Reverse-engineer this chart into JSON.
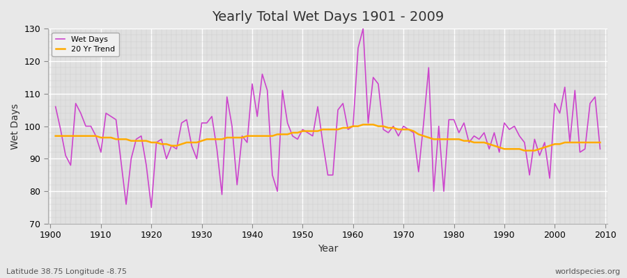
{
  "title": "Yearly Total Wet Days 1901 - 2009",
  "xlabel": "Year",
  "ylabel": "Wet Days",
  "lat_lon_label": "Latitude 38.75 Longitude -8.75",
  "watermark": "worldspecies.org",
  "ylim": [
    70,
    130
  ],
  "yticks": [
    70,
    80,
    90,
    100,
    110,
    120,
    130
  ],
  "xlim_start": 1901,
  "xlim_end": 2009,
  "years": [
    1901,
    1902,
    1903,
    1904,
    1905,
    1906,
    1907,
    1908,
    1909,
    1910,
    1911,
    1912,
    1913,
    1914,
    1915,
    1916,
    1917,
    1918,
    1919,
    1920,
    1921,
    1922,
    1923,
    1924,
    1925,
    1926,
    1927,
    1928,
    1929,
    1930,
    1931,
    1932,
    1933,
    1934,
    1935,
    1936,
    1937,
    1938,
    1939,
    1940,
    1941,
    1942,
    1943,
    1944,
    1945,
    1946,
    1947,
    1948,
    1949,
    1950,
    1951,
    1952,
    1953,
    1954,
    1955,
    1956,
    1957,
    1958,
    1959,
    1960,
    1961,
    1962,
    1963,
    1964,
    1965,
    1966,
    1967,
    1968,
    1969,
    1970,
    1971,
    1972,
    1973,
    1974,
    1975,
    1976,
    1977,
    1978,
    1979,
    1980,
    1981,
    1982,
    1983,
    1984,
    1985,
    1986,
    1987,
    1988,
    1989,
    1990,
    1991,
    1992,
    1993,
    1994,
    1995,
    1996,
    1997,
    1998,
    1999,
    2000,
    2001,
    2002,
    2003,
    2004,
    2005,
    2006,
    2007,
    2008,
    2009
  ],
  "wet_days": [
    106,
    99,
    91,
    88,
    107,
    104,
    100,
    100,
    97,
    92,
    104,
    103,
    102,
    89,
    76,
    90,
    96,
    97,
    88,
    75,
    95,
    96,
    90,
    94,
    93,
    101,
    102,
    94,
    90,
    101,
    101,
    103,
    93,
    79,
    109,
    100,
    82,
    97,
    95,
    113,
    103,
    116,
    111,
    85,
    80,
    111,
    101,
    97,
    96,
    99,
    98,
    97,
    106,
    95,
    85,
    85,
    105,
    107,
    99,
    100,
    124,
    130,
    101,
    115,
    113,
    99,
    98,
    100,
    97,
    100,
    99,
    98,
    86,
    101,
    118,
    80,
    100,
    80,
    102,
    102,
    98,
    101,
    95,
    97,
    96,
    98,
    93,
    98,
    92,
    101,
    99,
    100,
    97,
    95,
    85,
    96,
    91,
    95,
    84,
    107,
    104,
    112,
    95,
    111,
    92,
    93,
    107,
    109,
    93
  ],
  "trend_20yr": [
    97.0,
    97.0,
    97.0,
    97.0,
    97.0,
    97.0,
    97.0,
    97.0,
    97.0,
    96.5,
    96.5,
    96.5,
    96.0,
    96.0,
    96.0,
    95.5,
    95.5,
    95.5,
    95.5,
    95.0,
    95.0,
    94.5,
    94.5,
    94.0,
    94.0,
    94.5,
    95.0,
    95.0,
    95.0,
    95.5,
    96.0,
    96.0,
    96.0,
    96.0,
    96.5,
    96.5,
    96.5,
    96.5,
    97.0,
    97.0,
    97.0,
    97.0,
    97.0,
    97.0,
    97.5,
    97.5,
    97.5,
    98.0,
    98.0,
    98.5,
    98.5,
    98.5,
    98.5,
    99.0,
    99.0,
    99.0,
    99.0,
    99.5,
    99.5,
    100.0,
    100.0,
    100.5,
    100.5,
    100.5,
    100.0,
    100.0,
    99.5,
    99.5,
    99.0,
    99.0,
    99.0,
    98.5,
    97.5,
    97.0,
    96.5,
    96.0,
    96.0,
    96.0,
    96.0,
    96.0,
    96.0,
    95.5,
    95.5,
    95.0,
    95.0,
    95.0,
    94.5,
    94.0,
    93.5,
    93.0,
    93.0,
    93.0,
    93.0,
    92.5,
    92.5,
    92.5,
    93.0,
    93.5,
    94.0,
    94.5,
    94.5,
    95.0,
    95.0,
    95.0,
    95.0,
    95.0,
    95.0,
    95.0,
    95.0
  ],
  "wet_days_color": "#cc44cc",
  "trend_color": "#ffaa00",
  "background_color": "#e8e8e8",
  "plot_bg_color": "#e0e0e0",
  "grid_color_major": "#ffffff",
  "grid_color_minor": "#cccccc",
  "legend_wet_days": "Wet Days",
  "legend_trend": "20 Yr Trend",
  "title_fontsize": 14,
  "axis_label_fontsize": 10,
  "tick_fontsize": 9,
  "annotation_fontsize": 8
}
